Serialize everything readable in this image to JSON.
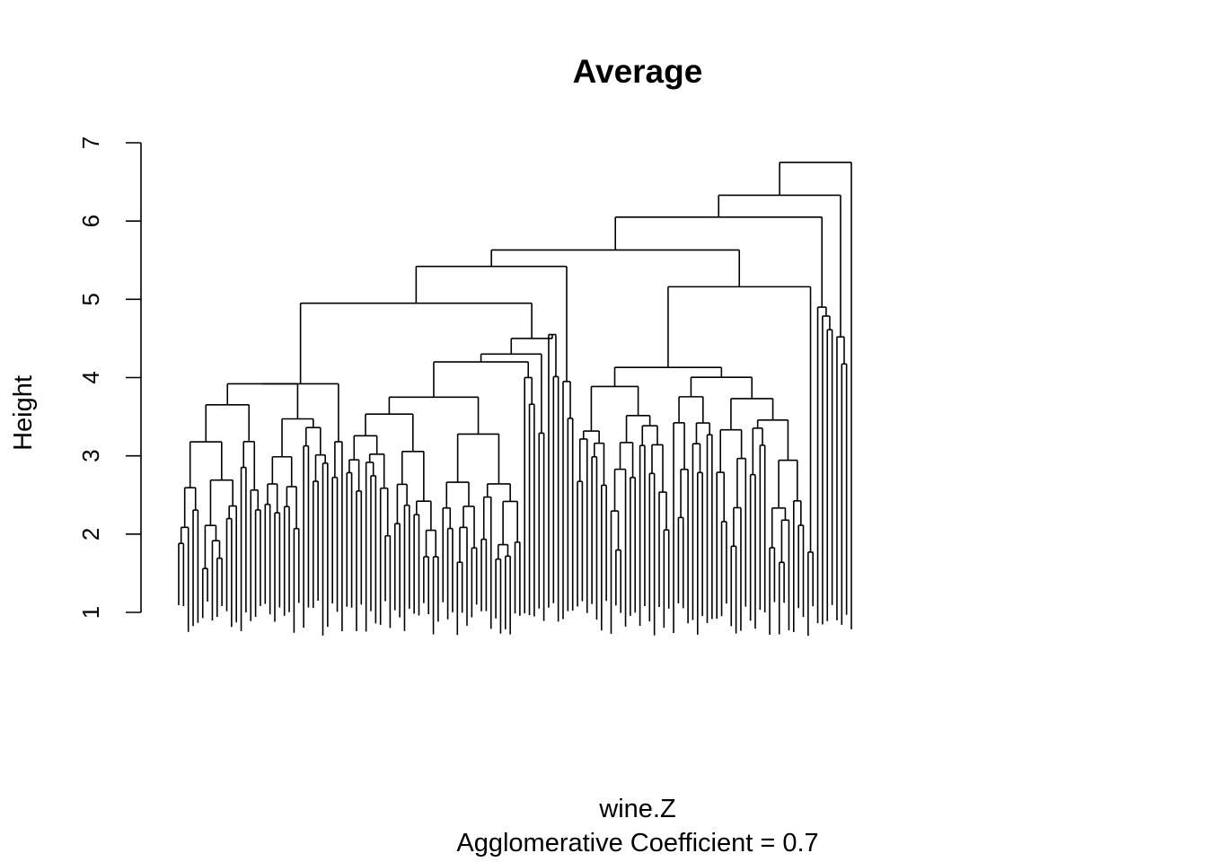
{
  "chart_data": {
    "type": "dendrogram",
    "title": "Average",
    "xlabel": "wine.Z",
    "sub": "Agglomerative Coefficient =  0.7",
    "ylabel": "Height",
    "ylim": [
      1,
      7
    ],
    "y_ticks": [
      "1",
      "2",
      "3",
      "4",
      "5",
      "6",
      "7"
    ],
    "top_merges": {
      "root": 6.75,
      "level_2": 6.33,
      "level_3": 6.05,
      "level_4": 5.63,
      "level_5a": 5.42,
      "level_5b": 5.16,
      "level_6a": 4.95,
      "level_6b": 4.13,
      "left_block": 3.92
    }
  }
}
